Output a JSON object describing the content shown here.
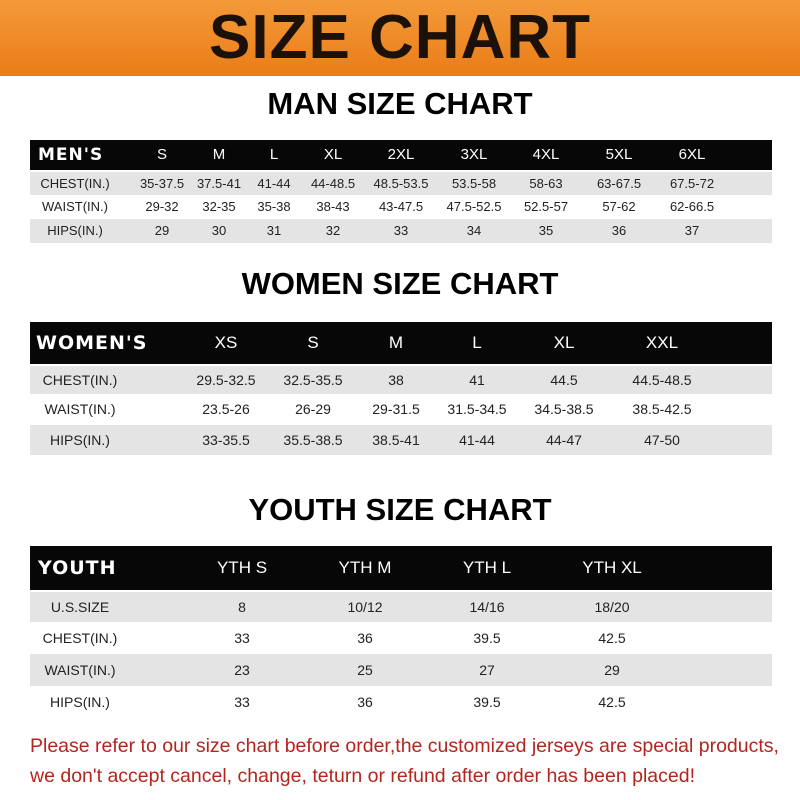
{
  "title": "SIZE CHART",
  "colors": {
    "banner": "#ee8a2a",
    "header_row": "#070707",
    "stripe": "#e4e4e4",
    "note": "#b3261e"
  },
  "men": {
    "title": "MAN SIZE CHART",
    "header": [
      "MEN'S",
      "S",
      "M",
      "L",
      "XL",
      "2XL",
      "3XL",
      "4XL",
      "5XL",
      "6XL"
    ],
    "rows": [
      [
        "CHEST(IN.)",
        "35-37.5",
        "37.5-41",
        "41-44",
        "44-48.5",
        "48.5-53.5",
        "53.5-58",
        "58-63",
        "63-67.5",
        "67.5-72"
      ],
      [
        "WAIST(IN.)",
        "29-32",
        "32-35",
        "35-38",
        "38-43",
        "43-47.5",
        "47.5-52.5",
        "52.5-57",
        "57-62",
        "62-66.5"
      ],
      [
        "HIPS(IN.)",
        "29",
        "30",
        "31",
        "32",
        "33",
        "34",
        "35",
        "36",
        "37"
      ]
    ]
  },
  "women": {
    "title": "WOMEN SIZE CHART",
    "header": [
      "WOMEN'S",
      "XS",
      "S",
      "M",
      "L",
      "XL",
      "XXL"
    ],
    "rows": [
      [
        "CHEST(IN.)",
        "29.5-32.5",
        "32.5-35.5",
        "38",
        "41",
        "44.5",
        "44.5-48.5"
      ],
      [
        "WAIST(IN.)",
        "23.5-26",
        "26-29",
        "29-31.5",
        "31.5-34.5",
        "34.5-38.5",
        "38.5-42.5"
      ],
      [
        "HIPS(IN.)",
        "33-35.5",
        "35.5-38.5",
        "38.5-41",
        "41-44",
        "44-47",
        "47-50"
      ]
    ]
  },
  "youth": {
    "title": "YOUTH SIZE CHART",
    "header": [
      "YOUTH",
      "YTH S",
      "YTH M",
      "YTH L",
      "YTH XL"
    ],
    "rows": [
      [
        "U.S.SIZE",
        "8",
        "10/12",
        "14/16",
        "18/20"
      ],
      [
        "CHEST(IN.)",
        "33",
        "36",
        "39.5",
        "42.5"
      ],
      [
        "WAIST(IN.)",
        "23",
        "25",
        "27",
        "29"
      ],
      [
        "HIPS(IN.)",
        "33",
        "36",
        "39.5",
        "42.5"
      ]
    ]
  },
  "note": {
    "line1": "Please refer to our size chart before order,the customized jerseys are special products,",
    "line2": "we don't accept cancel, change, teturn or refund after order has been placed!"
  }
}
